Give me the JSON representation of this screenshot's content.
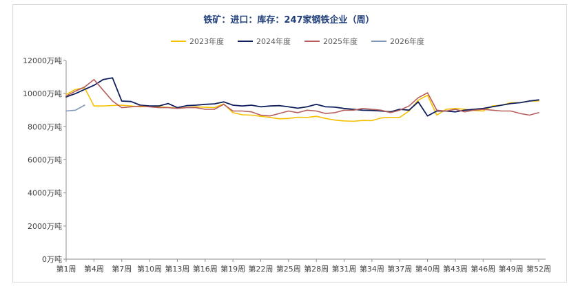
{
  "chart_data": {
    "type": "line",
    "title": "铁矿：进口：库存：247家钢铁企业（周）",
    "y_tick_labels": [
      "0万吨",
      "2000万吨",
      "4000万吨",
      "6000万吨",
      "8000万吨",
      "10000万吨",
      "12000万吨"
    ],
    "y_ticks": [
      0,
      2000,
      4000,
      6000,
      8000,
      10000,
      12000
    ],
    "ylim": [
      0,
      12000
    ],
    "x_tick_labels": [
      "第1周",
      "第4周",
      "第7周",
      "第10周",
      "第13周",
      "第16周",
      "第19周",
      "第22周",
      "第25周",
      "第28周",
      "第31周",
      "第34周",
      "第37周",
      "第40周",
      "第43周",
      "第46周",
      "第49周",
      "第52周"
    ],
    "x_ticks": [
      1,
      4,
      7,
      10,
      13,
      16,
      19,
      22,
      25,
      28,
      31,
      34,
      37,
      40,
      43,
      46,
      49,
      52
    ],
    "xlim": [
      1,
      52
    ],
    "grid": false,
    "legend_position": "top",
    "series": [
      {
        "name": "2023年度",
        "color": "#f5c000",
        "x": [
          1,
          2,
          3,
          4,
          5,
          6,
          7,
          8,
          9,
          10,
          11,
          12,
          13,
          14,
          15,
          16,
          17,
          18,
          19,
          20,
          21,
          22,
          23,
          24,
          25,
          26,
          27,
          28,
          29,
          30,
          31,
          32,
          33,
          34,
          35,
          36,
          37,
          38,
          39,
          40,
          41,
          42,
          43,
          44,
          45,
          46,
          47,
          48,
          49,
          50,
          51,
          52
        ],
        "values": [
          9950,
          10250,
          10350,
          9250,
          9250,
          9280,
          9300,
          9250,
          9200,
          9230,
          9200,
          9170,
          9120,
          9160,
          9200,
          9180,
          9150,
          9380,
          8850,
          8720,
          8700,
          8630,
          8560,
          8480,
          8500,
          8570,
          8560,
          8630,
          8500,
          8400,
          8350,
          8330,
          8380,
          8370,
          8530,
          8560,
          8560,
          8950,
          9600,
          9900,
          8700,
          9050,
          9100,
          9050,
          8980,
          8950,
          9250,
          9300,
          9450,
          9450,
          9550,
          9550
        ]
      },
      {
        "name": "2024年度",
        "color": "#0f1f5c",
        "x": [
          1,
          2,
          3,
          4,
          5,
          6,
          7,
          8,
          9,
          10,
          11,
          12,
          13,
          14,
          15,
          16,
          17,
          18,
          19,
          20,
          21,
          22,
          23,
          24,
          25,
          26,
          27,
          28,
          29,
          30,
          31,
          32,
          33,
          34,
          35,
          36,
          37,
          38,
          39,
          40,
          41,
          42,
          43,
          44,
          45,
          46,
          47,
          48,
          49,
          50,
          51,
          52
        ],
        "values": [
          9800,
          10000,
          10250,
          10500,
          10850,
          10950,
          9550,
          9520,
          9300,
          9250,
          9250,
          9400,
          9150,
          9270,
          9300,
          9350,
          9380,
          9500,
          9300,
          9250,
          9300,
          9200,
          9250,
          9270,
          9200,
          9120,
          9200,
          9350,
          9200,
          9180,
          9100,
          9050,
          9000,
          8980,
          8950,
          8900,
          9050,
          9000,
          9500,
          8650,
          8950,
          8950,
          8900,
          9000,
          9050,
          9100,
          9200,
          9300,
          9400,
          9450,
          9550,
          9620
        ]
      },
      {
        "name": "2025年度",
        "color": "#b55c5c",
        "x": [
          1,
          2,
          3,
          4,
          5,
          6,
          7,
          8,
          9,
          10,
          11,
          12,
          13,
          14,
          15,
          16,
          17,
          18,
          19,
          20,
          21,
          22,
          23,
          24,
          25,
          26,
          27,
          28,
          29,
          30,
          31,
          32,
          33,
          34,
          35,
          36,
          37,
          38,
          39,
          40,
          41,
          42,
          43,
          44,
          45,
          46,
          47,
          48,
          49,
          50,
          51,
          52
        ],
        "values": [
          9850,
          10150,
          10400,
          10850,
          10200,
          9550,
          9150,
          9200,
          9250,
          9200,
          9150,
          9150,
          9100,
          9150,
          9150,
          9050,
          9050,
          9350,
          8950,
          8950,
          8900,
          8700,
          8650,
          8800,
          8950,
          8850,
          9000,
          8950,
          8800,
          8850,
          9000,
          9000,
          9100,
          9050,
          9000,
          8850,
          9000,
          9250,
          9750,
          10050,
          9000,
          8950,
          9050,
          8900,
          9000,
          9050,
          9000,
          8950,
          8950,
          8800,
          8700,
          8850
        ]
      },
      {
        "name": "2026年度",
        "color": "#7f96b8",
        "x": [
          1,
          2,
          3
        ],
        "values": [
          8950,
          9000,
          9300
        ]
      }
    ]
  }
}
